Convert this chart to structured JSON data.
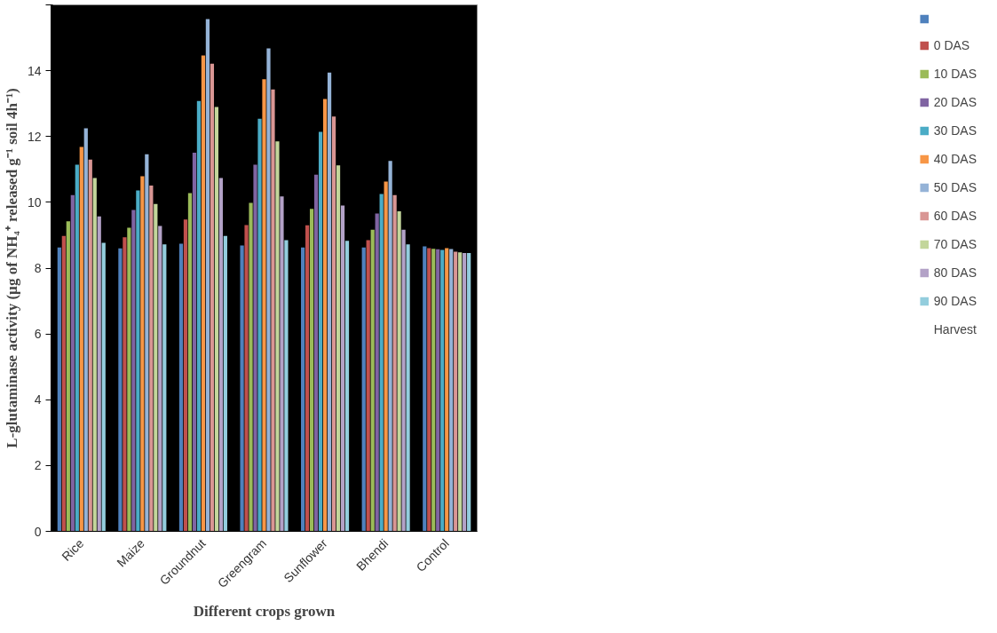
{
  "chart_data": {
    "type": "bar",
    "xlabel": "Different crops grown",
    "ylabel": "L-glutaminase activity (µg of NH₄⁺ released g⁻¹ soil 4h⁻¹)",
    "categories": [
      "Rice",
      "Maize",
      "Groundnut",
      "Greengram",
      "Sunflower",
      "Bhendi",
      "Control"
    ],
    "ylim": [
      0,
      16
    ],
    "yticks": [
      0,
      2,
      4,
      6,
      8,
      10,
      12,
      14,
      {
        "value": 16,
        "label": null
      }
    ],
    "grid": false,
    "legend": "right",
    "annotations": [
      "Harvest"
    ],
    "series": [
      {
        "color": "#4f81bd",
        "values": [
          8.63,
          8.6,
          8.74,
          8.69,
          8.63,
          8.63,
          8.66
        ]
      },
      {
        "name": "0 DAS",
        "color": "#c0504d",
        "values": [
          8.98,
          8.94,
          9.48,
          9.31,
          9.3,
          8.85,
          8.61
        ]
      },
      {
        "name": "10 DAS",
        "color": "#9bbb59",
        "values": [
          9.42,
          9.23,
          10.28,
          9.98,
          9.8,
          9.17,
          8.59
        ]
      },
      {
        "name": "20 DAS",
        "color": "#8064a2",
        "values": [
          10.22,
          9.77,
          11.51,
          11.14,
          10.84,
          9.66,
          8.57
        ]
      },
      {
        "name": "30 DAS",
        "color": "#4bacc6",
        "values": [
          11.14,
          10.36,
          13.08,
          12.54,
          12.14,
          10.25,
          8.55
        ]
      },
      {
        "name": "40 DAS",
        "color": "#f79646",
        "values": [
          11.68,
          10.79,
          14.46,
          13.74,
          13.14,
          10.63,
          8.61
        ]
      },
      {
        "name": "50 DAS",
        "color": "#95b3d7",
        "values": [
          12.25,
          11.46,
          15.57,
          14.68,
          13.94,
          11.26,
          8.58
        ]
      },
      {
        "name": "60 DAS",
        "color": "#d99694",
        "values": [
          11.3,
          10.51,
          14.21,
          13.43,
          12.61,
          10.22,
          8.5
        ]
      },
      {
        "name": "70 DAS",
        "color": "#c3d69b",
        "values": [
          10.74,
          9.95,
          12.9,
          11.85,
          11.12,
          9.73,
          8.48
        ]
      },
      {
        "name": "80 DAS",
        "color": "#b3a2c7",
        "values": [
          9.57,
          9.28,
          10.74,
          10.18,
          9.9,
          9.17,
          8.46
        ]
      },
      {
        "name": "90 DAS",
        "color": "#93cddd",
        "values": [
          8.77,
          8.72,
          8.98,
          8.85,
          8.83,
          8.72,
          8.46
        ]
      }
    ]
  }
}
